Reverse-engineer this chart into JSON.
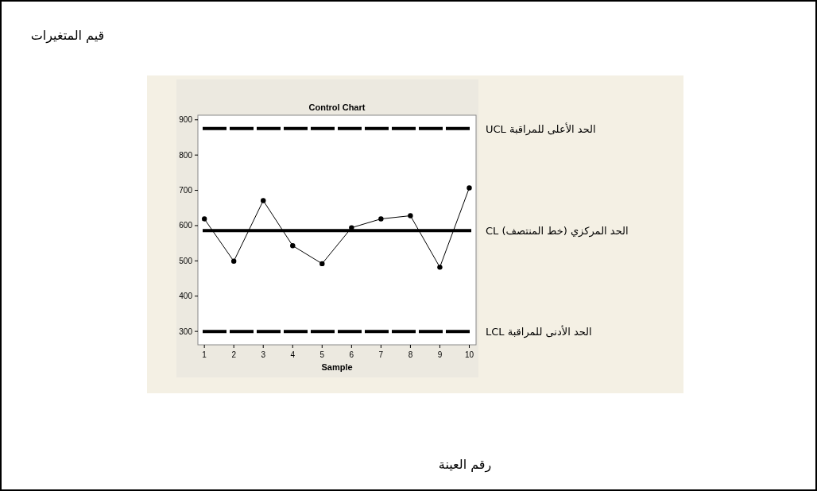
{
  "chart_data": {
    "type": "line",
    "title": "Control Chart",
    "xlabel": "Sample",
    "annotations": [
      "قيم المتغيرات",
      "رقم العينة"
    ],
    "x": [
      1,
      2,
      3,
      4,
      5,
      6,
      7,
      8,
      9,
      10
    ],
    "values": [
      619,
      499,
      671,
      543,
      492,
      594,
      619,
      628,
      482,
      707
    ],
    "color": "#000000",
    "marker": "circle",
    "line_style": "solid",
    "xlim": [
      0.78,
      10.23
    ],
    "xticks": [
      1,
      2,
      3,
      4,
      5,
      6,
      7,
      8,
      9,
      10
    ],
    "ylim": [
      262,
      913
    ],
    "yticks": [
      300,
      400,
      500,
      600,
      700,
      800,
      900
    ],
    "ref_lines": [
      {
        "axis": "y",
        "value": 875,
        "label": "الحد الأعلى للمراقبة UCL",
        "line_style": "dashed",
        "color": "#000000"
      },
      {
        "axis": "y",
        "value": 586,
        "label": "الحد المركزي (خط المنتصف) CL",
        "line_style": "solid",
        "color": "#000000"
      },
      {
        "axis": "y",
        "value": 300,
        "label": "الحد الأدنى للمراقبة LCL",
        "line_style": "dashed",
        "color": "#000000"
      }
    ],
    "grid": false
  }
}
